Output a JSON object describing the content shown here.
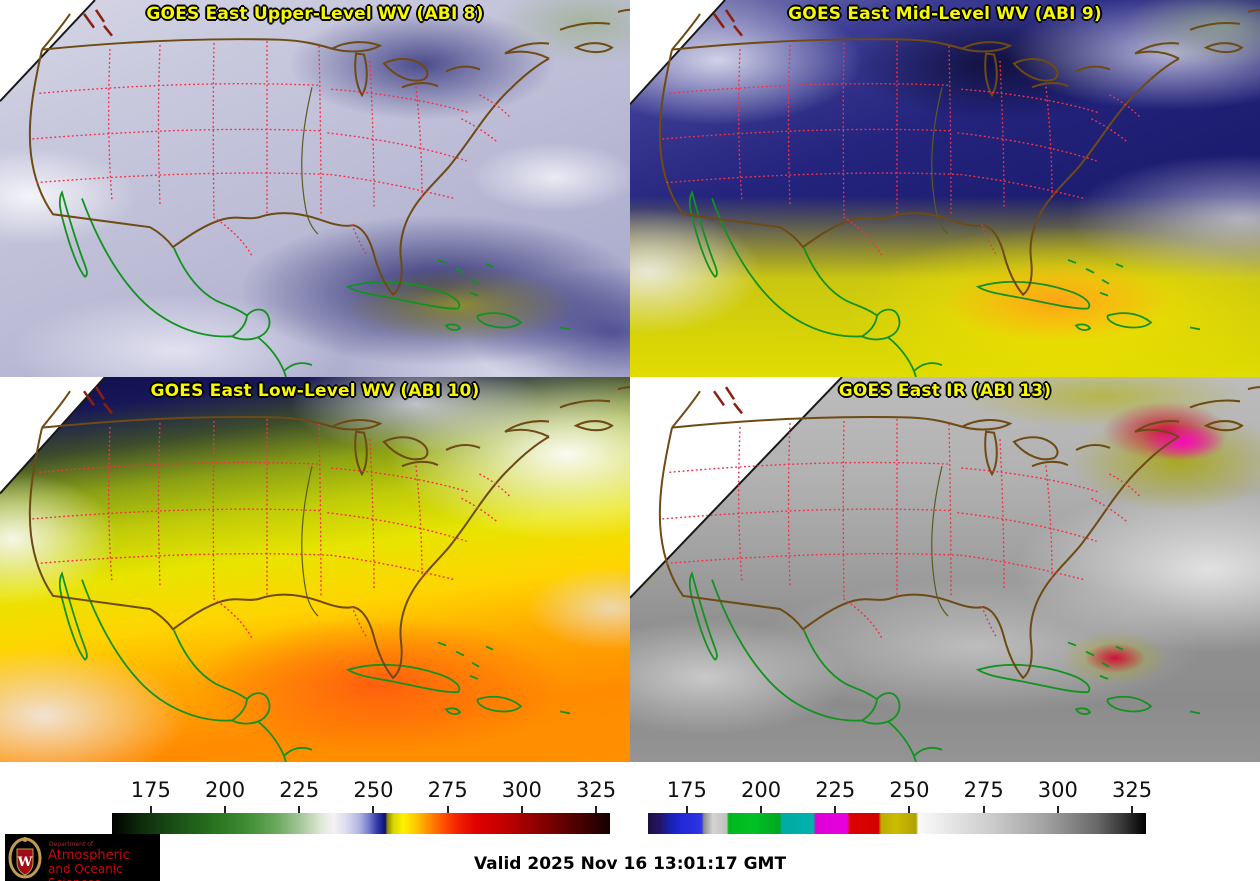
{
  "panels": [
    {
      "id": "abi8",
      "title": "GOES East Upper-Level WV (ABI 8)"
    },
    {
      "id": "abi9",
      "title": "GOES East Mid-Level WV (ABI 9)"
    },
    {
      "id": "abi10",
      "title": "GOES East Low-Level WV (ABI 10)"
    },
    {
      "id": "abi13",
      "title": "GOES East IR (ABI 13)"
    }
  ],
  "colorbars": {
    "ticks": [
      "175",
      "200",
      "225",
      "250",
      "275",
      "300",
      "325"
    ],
    "tick_positions_pct": [
      7.8,
      22.7,
      37.6,
      52.5,
      67.4,
      82.3,
      97.2
    ],
    "left_type": "water-vapor-enhancement",
    "right_type": "ir-enhancement",
    "approx_range": [
      162,
      332
    ]
  },
  "footer": {
    "valid_text": "Valid 2025 Nov 16 13:01:17 GMT"
  },
  "logo": {
    "letter": "W",
    "dept": "Department of",
    "line1": "Atmospheric",
    "line2": "and Oceanic Sciences"
  },
  "colors": {
    "title_yellow": "#f8f800",
    "state_border_red": "#f63046",
    "us_coast_brown": "#6e4a14",
    "intl_coast_green": "#12921e",
    "logo_red": "#c5050c",
    "background_white": "#ffffff",
    "text_black": "#000000"
  }
}
